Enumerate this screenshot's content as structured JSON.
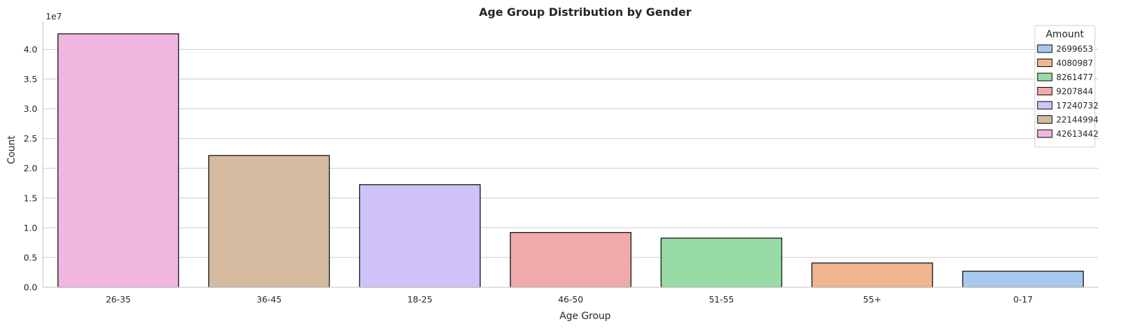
{
  "chart_data": {
    "type": "bar",
    "title": "Age Group Distribution by Gender",
    "xlabel": "Age Group",
    "ylabel": "Count",
    "y_offset_label": "1e7",
    "categories": [
      "26-35",
      "36-45",
      "18-25",
      "46-50",
      "51-55",
      "55+",
      "0-17"
    ],
    "values": [
      42613442,
      22144994,
      17240732,
      9207844,
      8261477,
      4080987,
      2699653
    ],
    "bar_colors": [
      "#f1b6e0",
      "#d5bb9f",
      "#d0c3f9",
      "#f1aaa9",
      "#98dba7",
      "#f1b690",
      "#a8c9ef"
    ],
    "ylim": [
      0,
      44700000
    ],
    "yticks": [
      0,
      5000000,
      10000000,
      15000000,
      20000000,
      25000000,
      30000000,
      35000000,
      40000000
    ],
    "ytick_labels": [
      "0.0",
      "0.5",
      "1.0",
      "1.5",
      "2.0",
      "2.5",
      "3.0",
      "3.5",
      "4.0"
    ],
    "grid": true,
    "legend": {
      "title": "Amount",
      "placement": "top-right",
      "entries": [
        {
          "label": "2699653",
          "color": "#a8c9ef"
        },
        {
          "label": "4080987",
          "color": "#f1b690"
        },
        {
          "label": "8261477",
          "color": "#98dba7"
        },
        {
          "label": "9207844",
          "color": "#f1aaa9"
        },
        {
          "label": "17240732",
          "color": "#d0c3f9"
        },
        {
          "label": "22144994",
          "color": "#d5bb9f"
        },
        {
          "label": "42613442",
          "color": "#f1b6e0"
        }
      ]
    }
  }
}
